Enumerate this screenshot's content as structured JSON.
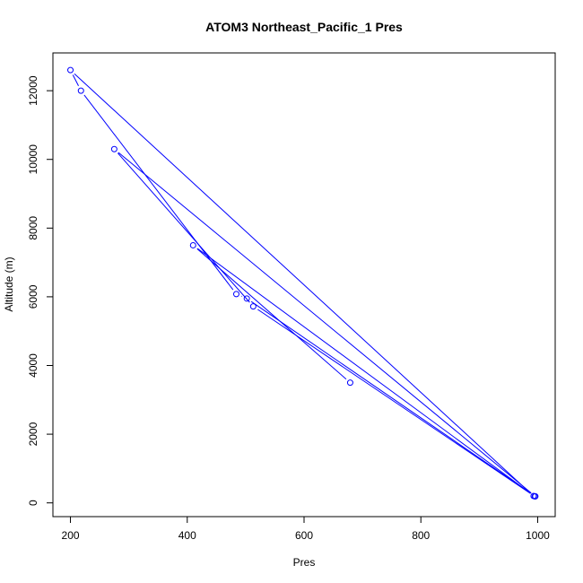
{
  "chart_data": {
    "type": "line",
    "title": "ATOM3 Northeast_Pacific_1 Pres",
    "xlabel": "Pres",
    "ylabel": "Altitude (m)",
    "xlim": [
      170,
      1030
    ],
    "ylim": [
      -400,
      13100
    ],
    "x_ticks": [
      200,
      400,
      600,
      800,
      1000
    ],
    "y_ticks": [
      0,
      2000,
      4000,
      6000,
      8000,
      10000,
      12000
    ],
    "series": [
      {
        "line_type": "b",
        "color": "#0000ff",
        "marker": "open-circle",
        "points": [
          {
            "x": 993,
            "y": 200
          },
          {
            "x": 200,
            "y": 12600
          },
          {
            "x": 218,
            "y": 12000
          },
          {
            "x": 484,
            "y": 6080
          },
          {
            "x": 502,
            "y": 5950
          },
          {
            "x": 996,
            "y": 190
          },
          {
            "x": 275,
            "y": 10300
          },
          {
            "x": 513,
            "y": 5720
          },
          {
            "x": 995,
            "y": 190
          },
          {
            "x": 410,
            "y": 7500
          },
          {
            "x": 679,
            "y": 3500
          }
        ]
      }
    ]
  }
}
